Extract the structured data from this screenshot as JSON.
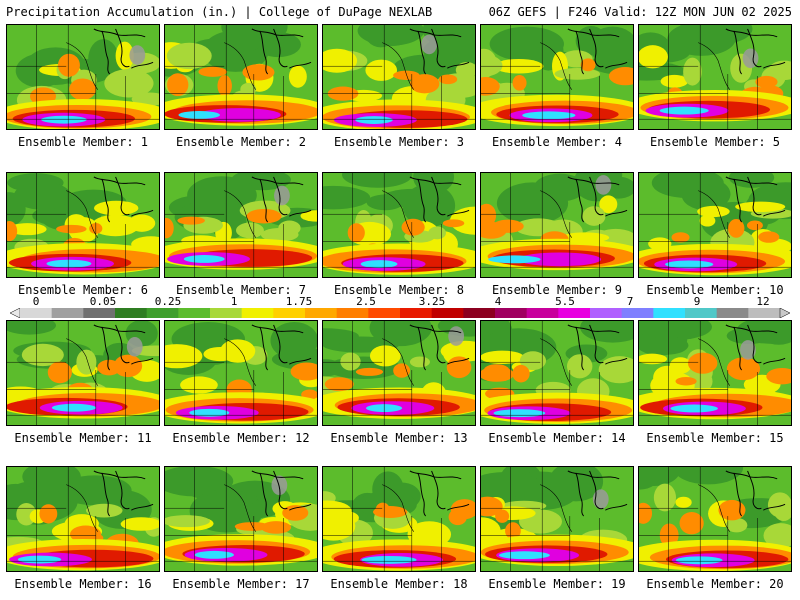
{
  "header": {
    "title": "Precipitation Accumulation (in.) | College of DuPage NEXLAB",
    "run_info": "06Z GEFS | F246 Valid: 12Z MON JUN 02 2025"
  },
  "panels": [
    {
      "label": "Ensemble Member: 1"
    },
    {
      "label": "Ensemble Member: 2"
    },
    {
      "label": "Ensemble Member: 3"
    },
    {
      "label": "Ensemble Member: 4"
    },
    {
      "label": "Ensemble Member: 5"
    },
    {
      "label": "Ensemble Member: 6"
    },
    {
      "label": "Ensemble Member: 7"
    },
    {
      "label": "Ensemble Member: 8"
    },
    {
      "label": "Ensemble Member: 9"
    },
    {
      "label": "Ensemble Member: 10"
    },
    {
      "label": "Ensemble Member: 11"
    },
    {
      "label": "Ensemble Member: 12"
    },
    {
      "label": "Ensemble Member: 13"
    },
    {
      "label": "Ensemble Member: 14"
    },
    {
      "label": "Ensemble Member: 15"
    },
    {
      "label": "Ensemble Member: 16"
    },
    {
      "label": "Ensemble Member: 17"
    },
    {
      "label": "Ensemble Member: 18"
    },
    {
      "label": "Ensemble Member: 19"
    },
    {
      "label": "Ensemble Member: 20"
    }
  ],
  "colorbar": {
    "tick_labels": [
      "0",
      "0.05",
      "0.25",
      "1",
      "1.75",
      "2.5",
      "3.25",
      "4",
      "5.5",
      "7",
      "9",
      "12"
    ],
    "colors": [
      "#d8d8d8",
      "#a0a0a0",
      "#707070",
      "#2f7d22",
      "#3f9f2c",
      "#5cbc2c",
      "#a8d838",
      "#f0f000",
      "#ffd000",
      "#ffa800",
      "#ff7e00",
      "#ff4a00",
      "#e81a00",
      "#c00000",
      "#8c0020",
      "#a00060",
      "#c8009c",
      "#e800e0",
      "#b060ff",
      "#7f7fff",
      "#30e0ff",
      "#50c8c8",
      "#8a8a8a",
      "#bdbdbd"
    ]
  },
  "palette": {
    "dry_green": "#3c9a2a",
    "mid_green": "#5cbc2c",
    "yellow": "#f0f000",
    "orange": "#ff8c00",
    "red": "#e01a00",
    "magenta": "#e000e0",
    "cyan": "#30e0ff",
    "gray": "#9a9a9a"
  }
}
